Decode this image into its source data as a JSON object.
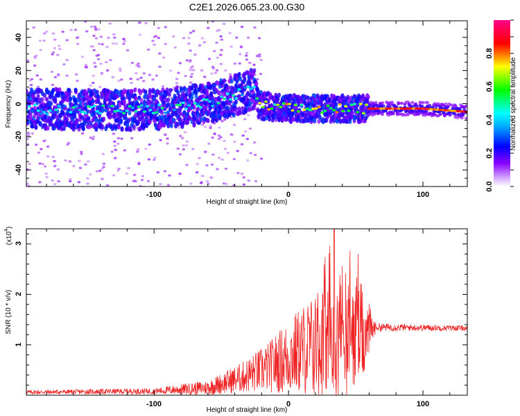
{
  "title": "C2E1.2026.065.23.00.G30",
  "chart_data": [
    {
      "type": "heatmap",
      "name": "spectrogram",
      "xlabel": "Height of straight line (km)",
      "ylabel": "Frequency (Hz)",
      "xlim": [
        -195,
        133
      ],
      "ylim": [
        -50,
        50
      ],
      "xticks": [
        -100,
        0,
        100
      ],
      "yticks": [
        -40,
        -20,
        0,
        20,
        40
      ],
      "colorbar": {
        "label": "Normalized spectral amplitude",
        "range": [
          0,
          1
        ],
        "ticks": [
          0.0,
          0.2,
          0.4,
          0.6,
          0.8
        ],
        "tick_labels": [
          "0.0",
          "0.2",
          "0.4",
          "0.6",
          "0.8"
        ],
        "colors": [
          "#ffffff",
          "#8800ff",
          "#0000ff",
          "#00ffff",
          "#00ff00",
          "#ffff00",
          "#ff0000",
          "#ff0088"
        ]
      },
      "ridge_frequency": [
        {
          "x": -195,
          "y": -3
        },
        {
          "x": -120,
          "y": -4
        },
        {
          "x": -90,
          "y": -3
        },
        {
          "x": -60,
          "y": 0
        },
        {
          "x": -40,
          "y": 5
        },
        {
          "x": -25,
          "y": 9
        },
        {
          "x": -22,
          "y": -1
        },
        {
          "x": 0,
          "y": -3
        },
        {
          "x": 30,
          "y": -3
        },
        {
          "x": 60,
          "y": -3
        },
        {
          "x": 100,
          "y": -3
        },
        {
          "x": 133,
          "y": -5
        }
      ]
    },
    {
      "type": "line",
      "name": "snr",
      "xlabel": "Height of straight line (km)",
      "ylabel": "SNR (10 * v/v)",
      "multiplier": "(x10",
      "multiplier_exp": "4",
      "xlim": [
        -195,
        133
      ],
      "ylim": [
        0,
        3.3
      ],
      "xticks": [
        -100,
        0,
        100
      ],
      "yticks": [
        1,
        2,
        3
      ],
      "color": "#ee2222",
      "envelope": [
        {
          "x": -195,
          "base": 0.06,
          "amp": 0.04
        },
        {
          "x": -100,
          "base": 0.08,
          "amp": 0.06
        },
        {
          "x": -60,
          "base": 0.15,
          "amp": 0.15
        },
        {
          "x": -35,
          "base": 0.35,
          "amp": 0.3
        },
        {
          "x": -15,
          "base": 0.55,
          "amp": 0.5
        },
        {
          "x": 10,
          "base": 0.9,
          "amp": 0.9
        },
        {
          "x": 35,
          "base": 1.1,
          "amp": 1.3
        },
        {
          "x": 55,
          "base": 1.2,
          "amp": 1.0
        },
        {
          "x": 65,
          "base": 1.35,
          "amp": 0.08
        },
        {
          "x": 133,
          "base": 1.33,
          "amp": 0.05
        }
      ],
      "peak": {
        "x": 34,
        "y": 3.3
      }
    }
  ]
}
